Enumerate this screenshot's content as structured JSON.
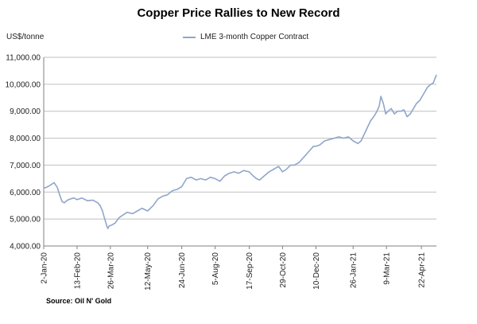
{
  "chart_data": {
    "type": "line",
    "title": "Copper Price Rallies to New Record",
    "ylabel": "US$/tonne",
    "xlabel": "",
    "ylim": [
      4000,
      11000
    ],
    "y_ticks": [
      "4,000.00",
      "5,000.00",
      "6,000.00",
      "7,000.00",
      "8,000.00",
      "9,000.00",
      "10,000.00",
      "11,000.00"
    ],
    "y_tick_values": [
      4000,
      5000,
      6000,
      7000,
      8000,
      9000,
      10000,
      11000
    ],
    "x_ticks": [
      "2-Jan-20",
      "13-Feb-20",
      "26-Mar-20",
      "12-May-20",
      "24-Jun-20",
      "5-Aug-20",
      "17-Sep-20",
      "29-Oct-20",
      "10-Dec-20",
      "26-Jan-21",
      "9-Mar-21",
      "22-Apr-21"
    ],
    "x_tick_positions": [
      0,
      42,
      84,
      131,
      174,
      216,
      259,
      301,
      343,
      390,
      432,
      476
    ],
    "x_range": [
      0,
      495
    ],
    "legend": "top-center",
    "grid": true,
    "series": [
      {
        "name": "LME 3-month Copper Contract",
        "color": "#8fa6cb",
        "x": [
          0,
          3,
          8,
          13,
          17,
          20,
          23,
          26,
          30,
          34,
          38,
          42,
          48,
          55,
          62,
          68,
          71,
          74,
          76,
          78,
          80,
          81,
          82,
          83,
          86,
          90,
          95,
          100,
          105,
          112,
          118,
          124,
          131,
          138,
          144,
          150,
          156,
          162,
          168,
          174,
          180,
          186,
          192,
          198,
          204,
          210,
          216,
          222,
          228,
          234,
          240,
          246,
          252,
          259,
          264,
          268,
          272,
          278,
          284,
          290,
          296,
          301,
          306,
          311,
          316,
          322,
          328,
          334,
          340,
          343,
          348,
          354,
          360,
          366,
          372,
          378,
          384,
          390,
          396,
          400,
          404,
          408,
          412,
          416,
          420,
          423,
          425,
          428,
          431,
          434,
          438,
          442,
          446,
          450,
          454,
          458,
          462,
          466,
          470,
          474,
          476,
          480,
          484,
          488,
          491,
          493,
          495
        ],
        "y": [
          6150,
          6170,
          6250,
          6350,
          6180,
          5900,
          5650,
          5600,
          5700,
          5750,
          5780,
          5720,
          5780,
          5680,
          5700,
          5600,
          5500,
          5300,
          5100,
          4900,
          4700,
          4650,
          4720,
          4750,
          4780,
          4850,
          5050,
          5150,
          5250,
          5200,
          5300,
          5400,
          5300,
          5500,
          5750,
          5850,
          5900,
          6050,
          6100,
          6200,
          6500,
          6550,
          6450,
          6500,
          6450,
          6550,
          6500,
          6400,
          6600,
          6700,
          6750,
          6700,
          6800,
          6750,
          6600,
          6500,
          6450,
          6600,
          6750,
          6850,
          6950,
          6750,
          6850,
          7000,
          7000,
          7100,
          7300,
          7500,
          7700,
          7700,
          7750,
          7900,
          7950,
          8000,
          8050,
          8000,
          8050,
          7900,
          7800,
          7900,
          8150,
          8400,
          8650,
          8800,
          9000,
          9200,
          9550,
          9300,
          8900,
          9000,
          9100,
          8900,
          9000,
          9000,
          9050,
          8800,
          8900,
          9100,
          9300,
          9400,
          9500,
          9700,
          9900,
          10000,
          10050,
          10200,
          10350
        ]
      }
    ]
  },
  "source": "Source: Oil N' Gold"
}
